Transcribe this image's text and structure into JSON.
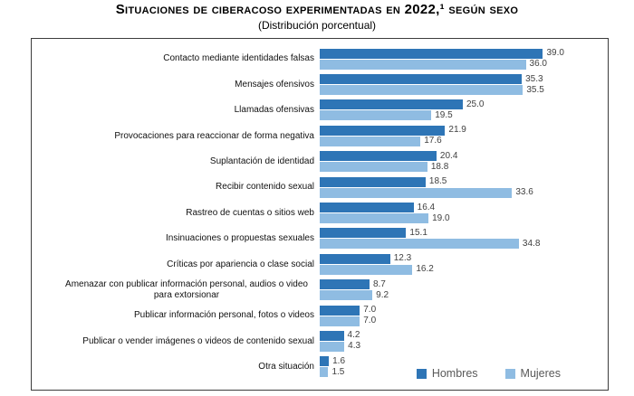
{
  "title": "Situaciones de ciberacoso experimentadas en 2022,¹ según sexo",
  "subtitle": "(Distribución porcentual)",
  "colors": {
    "hombres": "#2E75B6",
    "mujeres": "#8FBCE2",
    "value_label": "#404040",
    "legend_text": "#595959",
    "box_border": "#3d3d3d"
  },
  "chart_data": {
    "type": "bar",
    "orientation": "horizontal",
    "title": "Situaciones de ciberacoso experimentadas en 2022,¹ según sexo",
    "subtitle": "(Distribución porcentual)",
    "xlabel": "",
    "ylabel": "",
    "xlim": [
      0,
      50
    ],
    "grid": false,
    "value_labels": true,
    "value_format": "1-decimal",
    "legend_position": "bottom-right",
    "categories": [
      "Contacto mediante identidades falsas",
      "Mensajes ofensivos",
      "Llamadas ofensivas",
      "Provocaciones para reaccionar de forma negativa",
      "Suplantación de identidad",
      "Recibir contenido sexual",
      "Rastreo de cuentas o sitios web",
      "Insinuaciones o propuestas sexuales",
      "Críticas por apariencia o clase social",
      "Amenazar con publicar información personal, audios o video para extorsionar",
      "Publicar información personal, fotos o videos",
      "Publicar o vender imágenes o videos de contenido sexual",
      "Otra situación"
    ],
    "series": [
      {
        "name": "Hombres",
        "color": "#2E75B6",
        "values": [
          39.0,
          35.3,
          25.0,
          21.9,
          20.4,
          18.5,
          16.4,
          15.1,
          12.3,
          8.7,
          7.0,
          4.2,
          1.6
        ]
      },
      {
        "name": "Mujeres",
        "color": "#8FBCE2",
        "values": [
          36.0,
          35.5,
          19.5,
          17.6,
          18.8,
          33.6,
          19.0,
          34.8,
          16.2,
          9.2,
          7.0,
          4.3,
          1.5
        ]
      }
    ]
  }
}
